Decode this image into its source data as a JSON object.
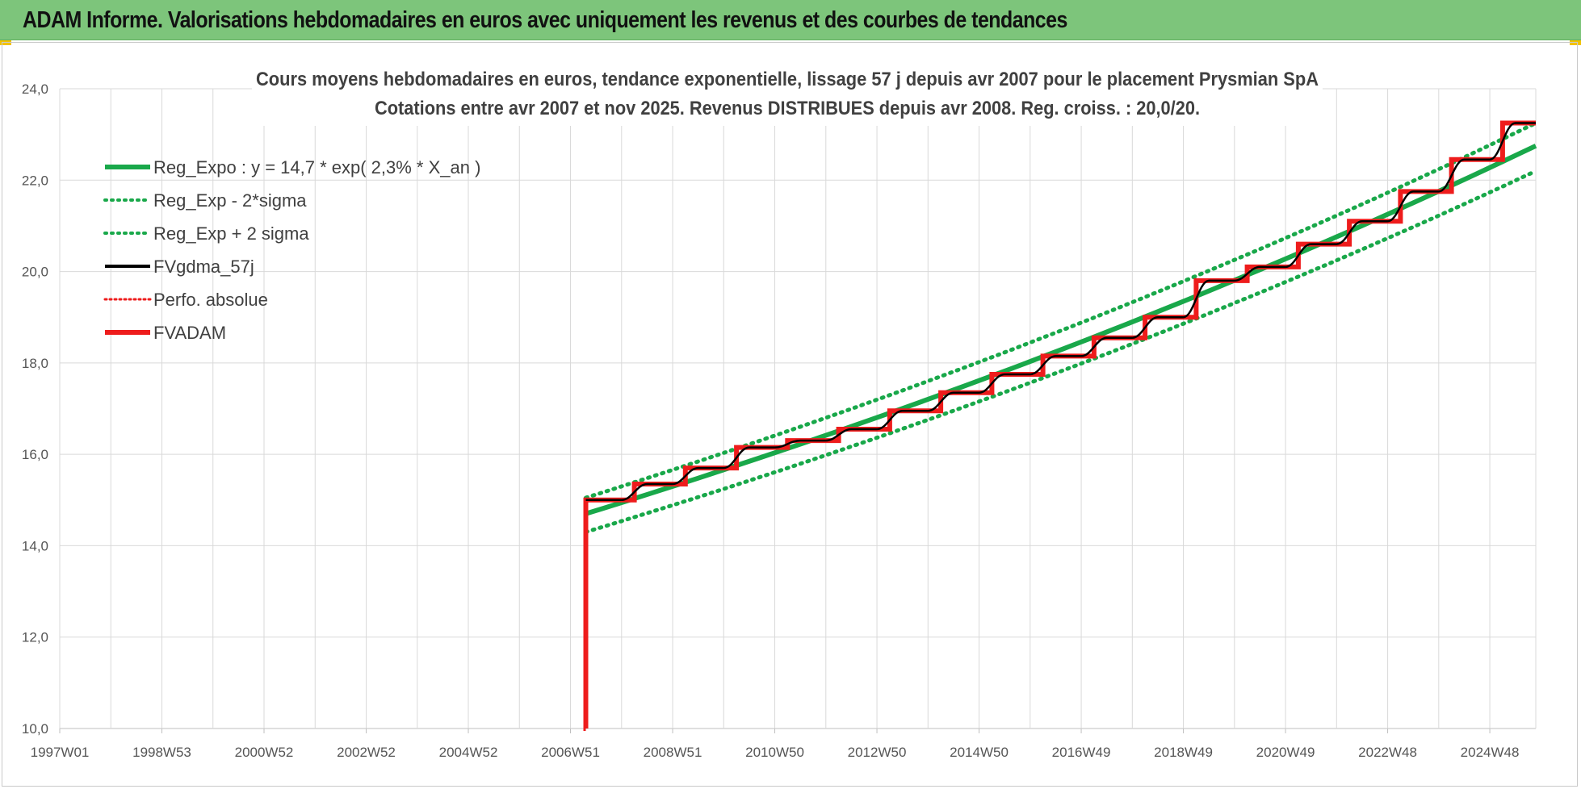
{
  "banner": {
    "title": "ADAM Informe. Valorisations hebdomadaires en euros avec uniquement les revenus et des courbes de tendances"
  },
  "colors": {
    "banner_bg": "#7dc57b",
    "green": "#19a84a",
    "red": "#ee1c1c",
    "black": "#000000",
    "grid": "#d9d9d9"
  },
  "chart_data": {
    "type": "line",
    "title_line1": "Cours moyens hebdomadaires en euros, tendance exponentielle, lissage 57 j depuis avr 2007 pour le placement Prysmian SpA",
    "title_line2": "Cotations entre avr 2007 et nov 2025.  Revenus DISTRIBUES depuis avr 2008. Reg. croiss. : 20,0/20.",
    "x_ticks": [
      "1997W01",
      "1998W53",
      "2000W52",
      "2002W52",
      "2004W52",
      "2006W51",
      "2008W51",
      "2010W50",
      "2012W50",
      "2014W50",
      "2016W49",
      "2018W49",
      "2020W49",
      "2022W48",
      "2024W48"
    ],
    "x_range": [
      "1997W01",
      "2025W47"
    ],
    "y_ticks": [
      "10,0",
      "12,0",
      "14,0",
      "16,0",
      "18,0",
      "20,0",
      "22,0",
      "24,0"
    ],
    "ylim": [
      10,
      24
    ],
    "grid": true,
    "legend_placement": "top-left",
    "legend": [
      {
        "label": "Reg_Expo : y = 14,7 * exp( 2,3% *  X_an )",
        "color": "#19a84a",
        "style": "solid-thick"
      },
      {
        "label": "Reg_Exp - 2*sigma",
        "color": "#19a84a",
        "style": "dotted"
      },
      {
        "label": "Reg_Exp + 2 sigma",
        "color": "#19a84a",
        "style": "dotted"
      },
      {
        "label": "FVgdma_57j",
        "color": "#000000",
        "style": "solid"
      },
      {
        "label": "Perfo. absolue",
        "color": "#ee1c1c",
        "style": "dotted"
      },
      {
        "label": "FVADAM",
        "color": "#ee1c1c",
        "style": "solid-thick"
      }
    ],
    "series": [
      {
        "name": "Reg_Expo : y = 14,7 * exp( 2,3% *  X_an )",
        "x": [
          2007.3,
          2025.9
        ],
        "y": [
          14.7,
          22.75
        ]
      },
      {
        "name": "Reg_Exp - 2*sigma",
        "x": [
          2007.3,
          2025.9
        ],
        "y": [
          14.3,
          22.2
        ]
      },
      {
        "name": "Reg_Exp + 2 sigma",
        "x": [
          2007.3,
          2025.9
        ],
        "y": [
          15.05,
          23.25
        ]
      },
      {
        "name": "FVADAM",
        "steps": [
          {
            "x": 2007.3,
            "y": 10.0
          },
          {
            "x": 2007.3,
            "y": 15.0
          },
          {
            "x": 2008.25,
            "y": 15.35
          },
          {
            "x": 2009.25,
            "y": 15.7
          },
          {
            "x": 2010.25,
            "y": 16.15
          },
          {
            "x": 2011.25,
            "y": 16.3
          },
          {
            "x": 2012.25,
            "y": 16.55
          },
          {
            "x": 2013.25,
            "y": 16.95
          },
          {
            "x": 2014.25,
            "y": 17.35
          },
          {
            "x": 2015.25,
            "y": 17.75
          },
          {
            "x": 2016.25,
            "y": 18.15
          },
          {
            "x": 2017.25,
            "y": 18.55
          },
          {
            "x": 2018.25,
            "y": 19.0
          },
          {
            "x": 2019.25,
            "y": 19.8
          },
          {
            "x": 2020.25,
            "y": 20.1
          },
          {
            "x": 2021.25,
            "y": 20.6
          },
          {
            "x": 2022.25,
            "y": 21.1
          },
          {
            "x": 2023.25,
            "y": 21.75
          },
          {
            "x": 2024.25,
            "y": 22.45
          },
          {
            "x": 2025.25,
            "y": 23.25
          }
        ],
        "end_x": 2025.9
      }
    ]
  }
}
